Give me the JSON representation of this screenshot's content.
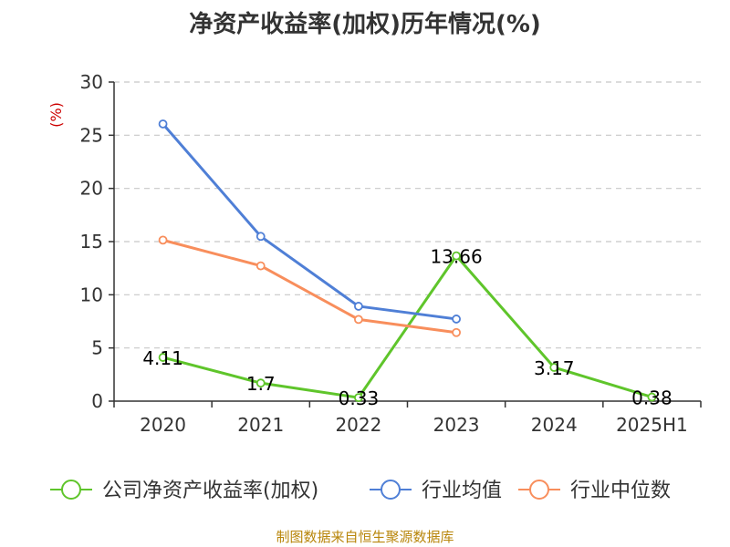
{
  "title": "净资产收益率(加权)历年情况(%)",
  "source": "制图数据来自恒生聚源数据库",
  "chart_data": {
    "type": "line",
    "title": "净资产收益率(加权)历年情况(%)",
    "ylabel": "(%)",
    "xlabel": "",
    "ylim": [
      0,
      30
    ],
    "yticks": [
      0,
      5,
      10,
      15,
      20,
      25,
      30
    ],
    "categories": [
      "2020",
      "2021",
      "2022",
      "2023",
      "2024",
      "2025H1"
    ],
    "grid": true,
    "legend_position": "bottom",
    "series": [
      {
        "name": "公司净资产收益率(加权)",
        "color": "#5fc52b",
        "values": [
          4.11,
          1.7,
          0.33,
          13.66,
          3.17,
          0.38
        ],
        "labels": [
          "4.11",
          "1.7",
          "0.33",
          "13.66",
          "3.17",
          "0.38"
        ]
      },
      {
        "name": "行业均值",
        "color": "#4f7fd6",
        "values": [
          26.06,
          15.49,
          8.92,
          7.72,
          null,
          null
        ]
      },
      {
        "name": "行业中位数",
        "color": "#f88e5c",
        "values": [
          15.14,
          12.72,
          7.68,
          6.45,
          null,
          null
        ]
      }
    ]
  }
}
